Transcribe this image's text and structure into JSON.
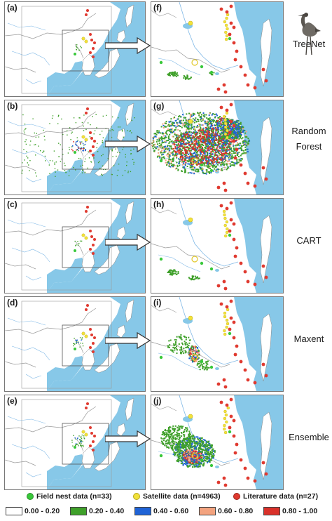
{
  "rows": [
    {
      "left_label": "(a)",
      "right_label": "(f)",
      "model": "TreeNet",
      "layer": "treenet"
    },
    {
      "left_label": "(b)",
      "right_label": "(g)",
      "model": "Random Forest",
      "layer": "rf"
    },
    {
      "left_label": "(c)",
      "right_label": "(h)",
      "model": "CART",
      "layer": "cart"
    },
    {
      "left_label": "(d)",
      "right_label": "(i)",
      "model": "Maxent",
      "layer": "maxent"
    },
    {
      "left_label": "(e)",
      "right_label": "(j)",
      "model": "Ensemble",
      "layer": "ensemble"
    }
  ],
  "point_legend": [
    {
      "label": "Field nest data (n=33)",
      "color": "#39c83a"
    },
    {
      "label": "Satellite data (n=4963)",
      "color": "#f2e23a"
    },
    {
      "label": "Literature data (n=27)",
      "color": "#e03a30"
    }
  ],
  "suitability_classes": [
    {
      "label": "0.00 - 0.20",
      "color": "#ffffff"
    },
    {
      "label": "0.20 - 0.40",
      "color": "#3fa02a"
    },
    {
      "label": "0.40 - 0.60",
      "color": "#1f63d6"
    },
    {
      "label": "0.60 - 0.80",
      "color": "#f3a37f"
    },
    {
      "label": "0.80 - 1.00",
      "color": "#d9312a"
    }
  ],
  "colors": {
    "sea": "#87c8e8",
    "land": "#ffffff",
    "border": "#9a9a9a",
    "river": "#7fb8e6"
  }
}
